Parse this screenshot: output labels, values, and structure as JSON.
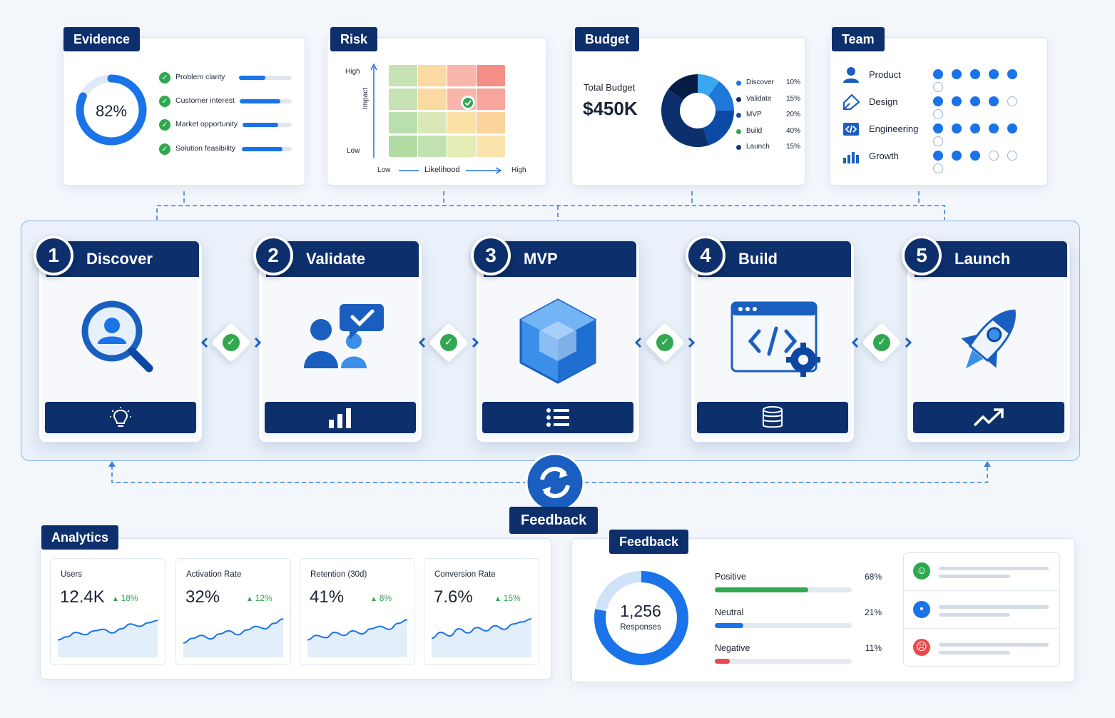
{
  "evidence": {
    "tab": "Evidence",
    "score": "82%",
    "score_value": 0.82,
    "items": [
      {
        "label": "Problem clarity",
        "level": 0.5
      },
      {
        "label": "Customer interest",
        "level": 0.78
      },
      {
        "label": "Market opportunity",
        "level": 0.73
      },
      {
        "label": "Solution feasibility",
        "level": 0.82
      }
    ]
  },
  "risk": {
    "tab": "Risk",
    "y_high": "High",
    "y_low": "Low",
    "y_axis": "Impact",
    "x_low": "Low",
    "x_axis": "Likelihood",
    "x_high": "High",
    "grid_colors": [
      [
        "#c7e3b6",
        "#fbd9a2",
        "#f8b5a9",
        "#f38f86"
      ],
      [
        "#c7e3b6",
        "#fbd9a2",
        "#f8b5a9",
        "#f8a59c"
      ],
      [
        "#b9dfac",
        "#d9e8b6",
        "#fbe0a6",
        "#fbd39c"
      ],
      [
        "#b3dba4",
        "#bfe2b0",
        "#e5edb6",
        "#fbe4ac"
      ]
    ]
  },
  "budget": {
    "tab": "Budget",
    "label": "Total Budget",
    "total": "$450K",
    "items": [
      {
        "name": "Discover",
        "pct": "10%",
        "value": 10,
        "color": "#1a73e8"
      },
      {
        "name": "Validate",
        "pct": "15%",
        "value": 15,
        "color": "#0d2f6b"
      },
      {
        "name": "MVP",
        "pct": "20%",
        "value": 20,
        "color": "#1c4f9c"
      },
      {
        "name": "Build",
        "pct": "40%",
        "value": 40,
        "color": "#2fa84f"
      },
      {
        "name": "Launch",
        "pct": "15%",
        "value": 15,
        "color": "#133a7a"
      }
    ],
    "ring_colors": [
      "#3aa7f0",
      "#1f78d8",
      "#0d4aa8",
      "#0d2f6b",
      "#071d45"
    ]
  },
  "team": {
    "tab": "Team",
    "members": [
      {
        "name": "Product",
        "icon": "person-icon",
        "filled": 5,
        "total": 6
      },
      {
        "name": "Design",
        "icon": "pen-tool-icon",
        "filled": 4,
        "total": 6
      },
      {
        "name": "Engineering",
        "icon": "code-icon",
        "filled": 5,
        "total": 6
      },
      {
        "name": "Growth",
        "icon": "bar-chart-icon",
        "filled": 3,
        "total": 6
      }
    ]
  },
  "stages": [
    {
      "num": "1",
      "title": "Discover",
      "icon": "search-person-icon",
      "foot_icon": "lightbulb-icon"
    },
    {
      "num": "2",
      "title": "Validate",
      "icon": "users-chat-check-icon",
      "foot_icon": "bar-chart-icon"
    },
    {
      "num": "3",
      "title": "MVP",
      "icon": "cube-icon",
      "foot_icon": "list-icon"
    },
    {
      "num": "4",
      "title": "Build",
      "icon": "code-window-gear-icon",
      "foot_icon": "database-icon"
    },
    {
      "num": "5",
      "title": "Launch",
      "icon": "rocket-icon",
      "foot_icon": "trend-up-icon"
    }
  ],
  "loop": {
    "label": "Feedback",
    "icon": "refresh-icon"
  },
  "analytics": {
    "tab": "Analytics",
    "metrics": [
      {
        "label": "Users",
        "value": "12.4K",
        "delta": "18%",
        "trend": [
          0.25,
          0.35,
          0.5,
          0.42,
          0.55,
          0.6,
          0.48,
          0.62,
          0.78,
          0.7,
          0.82,
          0.9
        ]
      },
      {
        "label": "Activation Rate",
        "value": "32%",
        "delta": "12%",
        "trend": [
          0.15,
          0.3,
          0.4,
          0.28,
          0.45,
          0.55,
          0.42,
          0.58,
          0.7,
          0.62,
          0.8,
          0.95
        ]
      },
      {
        "label": "Retention (30d)",
        "value": "41%",
        "delta": "8%",
        "trend": [
          0.25,
          0.4,
          0.32,
          0.5,
          0.4,
          0.55,
          0.45,
          0.62,
          0.7,
          0.6,
          0.8,
          0.92
        ]
      },
      {
        "label": "Conversion Rate",
        "value": "7.6%",
        "delta": "15%",
        "trend": [
          0.3,
          0.5,
          0.38,
          0.62,
          0.48,
          0.66,
          0.55,
          0.72,
          0.6,
          0.78,
          0.85,
          0.95
        ]
      }
    ]
  },
  "feedback": {
    "tab": "Feedback",
    "total": "1,256",
    "total_label": "Responses",
    "rows": [
      {
        "label": "Positive",
        "pct": "68%",
        "value": 0.68,
        "color": "#2fa84f"
      },
      {
        "label": "Neutral",
        "pct": "21%",
        "value": 0.21,
        "color": "#1a73e8"
      },
      {
        "label": "Negative",
        "pct": "11%",
        "value": 0.11,
        "color": "#e94b4b"
      }
    ],
    "comments": [
      {
        "face": "smile-icon",
        "glyph": "☺",
        "color": "#2fa84f"
      },
      {
        "face": "neutral-face-icon",
        "glyph": "•",
        "color": "#1a73e8"
      },
      {
        "face": "frown-icon",
        "glyph": "☹",
        "color": "#e94b4b"
      }
    ]
  }
}
